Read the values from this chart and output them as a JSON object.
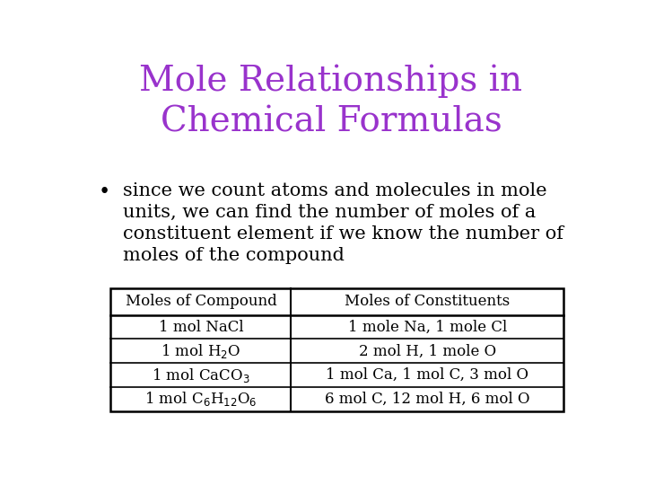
{
  "title_line1": "Mole Relationships in",
  "title_line2": "Chemical Formulas",
  "title_color": "#9933cc",
  "bullet_text_lines": [
    "since we count atoms and molecules in mole",
    "units, we can find the number of moles of a",
    "constituent element if we know the number of",
    "moles of the compound"
  ],
  "table_headers": [
    "Moles of Compound",
    "Moles of Constituents"
  ],
  "table_rows_col0_display": [
    "1 mol NaCl",
    "1 mol H$_2$O",
    "1 mol CaCO$_3$",
    "1 mol C$_6$H$_{12}$O$_6$"
  ],
  "table_rows_col1": [
    "1 mole Na, 1 mole Cl",
    "2 mol H, 1 mole O",
    "1 mol Ca, 1 mol C, 3 mol O",
    "6 mol C, 12 mol H, 6 mol O"
  ],
  "background_color": "#ffffff",
  "text_color": "#000000",
  "table_header_fontsize": 12,
  "table_body_fontsize": 12,
  "title_fontsize": 28,
  "bullet_fontsize": 15,
  "font_family": "DejaVu Serif"
}
